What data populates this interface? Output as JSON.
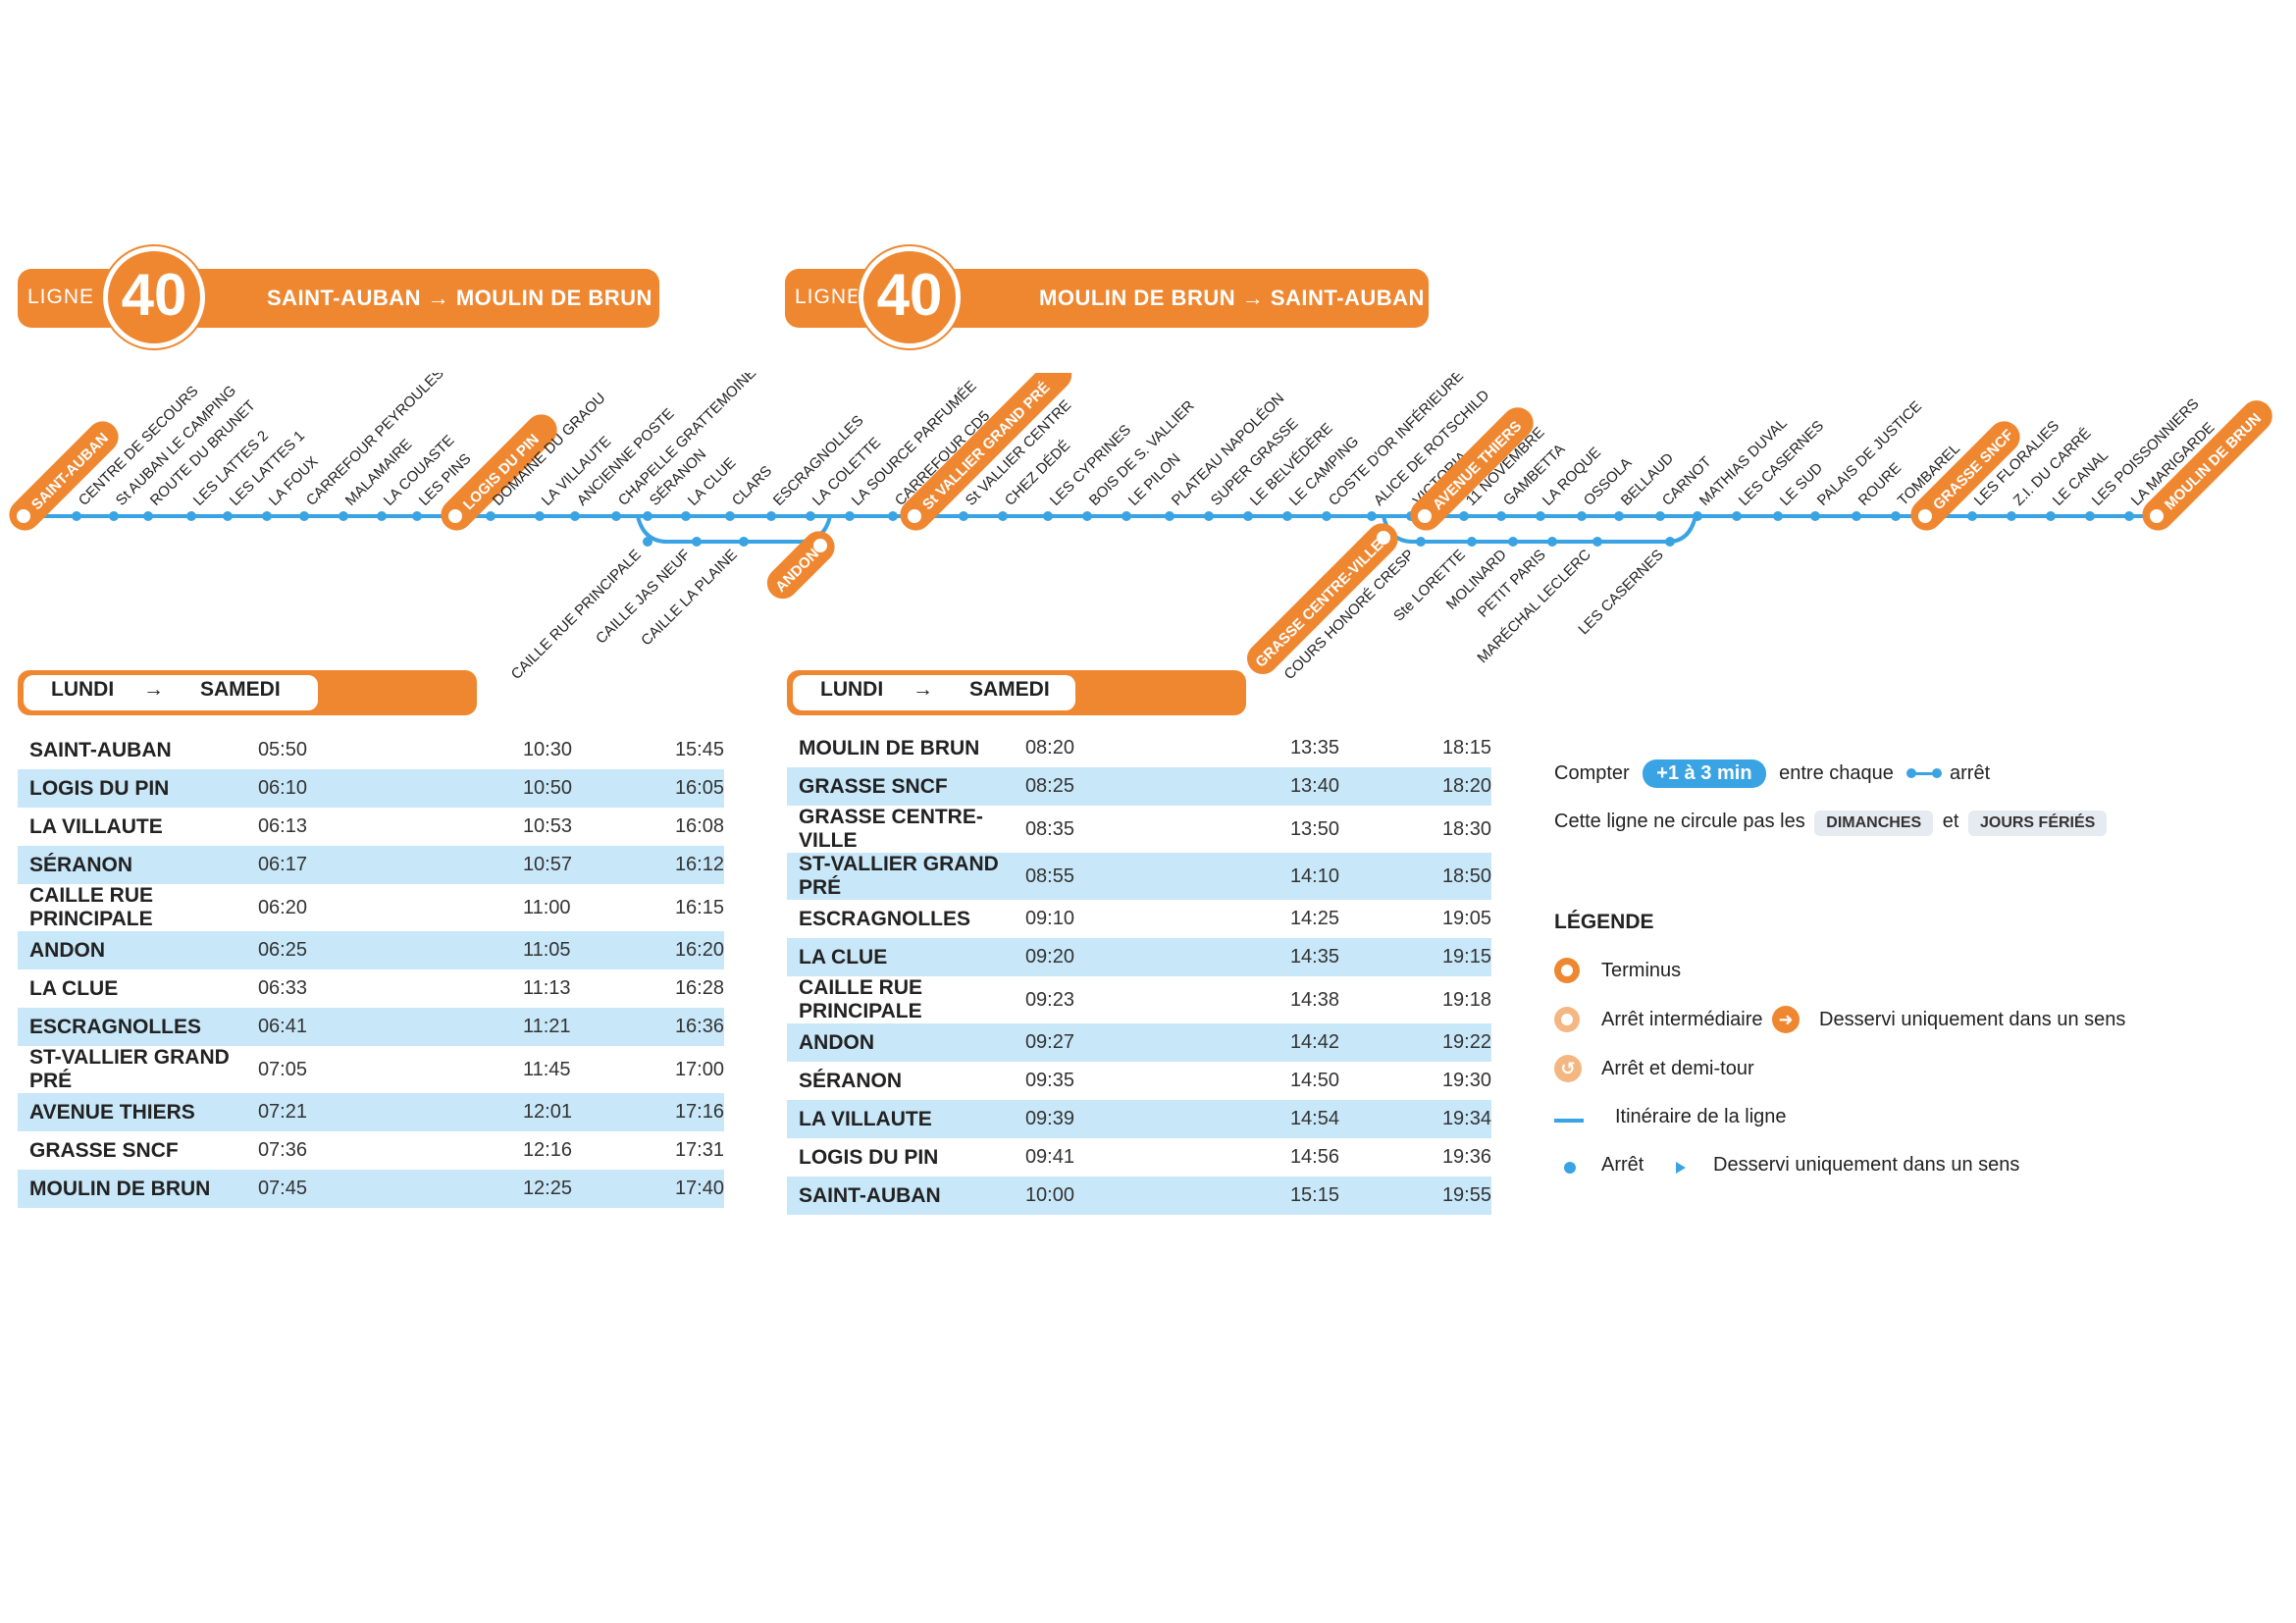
{
  "colors": {
    "orange": "#ef8731",
    "blue": "#3aa3e3",
    "light_blue": "#c8e7f8"
  },
  "header_left": {
    "ligne": "LIGNE",
    "number": "40",
    "from": "SAINT-AUBAN",
    "arrow": "→",
    "to": "MOULIN DE BRUN"
  },
  "header_right": {
    "ligne": "LIGNE",
    "number": "40",
    "from": "MOULIN DE BRUN",
    "arrow": "→",
    "to": "SAINT-AUBAN"
  },
  "map": {
    "main_stops": [
      "SAINT-AUBAN",
      "CENTRE DE SECOURS",
      "St AUBAN LE CAMPING",
      "ROUTE DU BRUNET",
      "LES LATTES 2",
      "LES LATTES 1",
      "LA FOUX",
      "CARREFOUR PEYROULES",
      "MALAMAIRE",
      "LA COUASTE",
      "LES PINS",
      "LOGIS DU PIN",
      "DOMAINE DU GRAOU",
      "LA VILLAUTE",
      "ANCIENNE POSTE",
      "CHAPELLE GRATTEMOINE",
      "SÉRANON",
      "LA CLUE",
      "CLARS",
      "ESCRAGNOLLES",
      "LA COLETTE",
      "LA SOURCE PARFUMÉE",
      "CARREFOUR CD5",
      "St VALLIER GRAND PRÉ",
      "St VALLIER CENTRE",
      "CHEZ DÉDÉ",
      "LES CYPRINES",
      "BOIS DE S. VALLIER",
      "LE PILON",
      "PLATEAU NAPOLÉON",
      "SUPER GRASSE",
      "LE BELVÉDÈRE",
      "LE CAMPING",
      "COSTE D'OR INFÉRIEURE",
      "ALICE DE ROTSCHILD",
      "VICTORIA",
      "AVENUE THIERS",
      "11 NOVEMBRE",
      "GAMBETTA",
      "LA ROQUE",
      "OSSOLA",
      "BELLAUD",
      "CARNOT",
      "MATHIAS DUVAL",
      "LES CASERNES",
      "LE SUD",
      "PALAIS DE JUSTICE",
      "ROURE",
      "TOMBAREL",
      "GRASSE SNCF",
      "LES FLORALIES",
      "Z.I. DU CARRÉ",
      "LE CANAL",
      "LES POISSONNIERS",
      "LA MARIGARDE",
      "MOULIN DE BRUN"
    ],
    "branch1_stops": [
      "CAILLE RUE PRINCIPALE",
      "CAILLE JAS NEUF",
      "CAILLE LA PLAINE",
      "ANDON"
    ],
    "branch2_stops": [
      "GRASSE CENTRE-VILLE",
      "COURS HONORÉ CRESP",
      "Ste LORETTE",
      "MOLINARD",
      "PETIT PARIS",
      "MARÉCHAL LECLERC",
      "LES CASERNES"
    ]
  },
  "tab_left": {
    "from": "LUNDI",
    "arrow": "→",
    "to": "SAMEDI"
  },
  "tab_right": {
    "from": "LUNDI",
    "arrow": "→",
    "to": "SAMEDI"
  },
  "table_left": [
    {
      "stop": "SAINT-AUBAN",
      "t1": "05:50",
      "t2": "10:30",
      "t3": "15:45"
    },
    {
      "stop": "LOGIS DU PIN",
      "t1": "06:10",
      "t2": "10:50",
      "t3": "16:05"
    },
    {
      "stop": "LA VILLAUTE",
      "t1": "06:13",
      "t2": "10:53",
      "t3": "16:08"
    },
    {
      "stop": "SÉRANON",
      "t1": "06:17",
      "t2": "10:57",
      "t3": "16:12"
    },
    {
      "stop": "CAILLE RUE PRINCIPALE",
      "t1": "06:20",
      "t2": "11:00",
      "t3": "16:15"
    },
    {
      "stop": "ANDON",
      "t1": "06:25",
      "t2": "11:05",
      "t3": "16:20"
    },
    {
      "stop": "LA CLUE",
      "t1": "06:33",
      "t2": "11:13",
      "t3": "16:28"
    },
    {
      "stop": "ESCRAGNOLLES",
      "t1": "06:41",
      "t2": "11:21",
      "t3": "16:36"
    },
    {
      "stop": "ST-VALLIER GRAND PRÉ",
      "t1": "07:05",
      "t2": "11:45",
      "t3": "17:00"
    },
    {
      "stop": "AVENUE THIERS",
      "t1": "07:21",
      "t2": "12:01",
      "t3": "17:16"
    },
    {
      "stop": "GRASSE SNCF",
      "t1": "07:36",
      "t2": "12:16",
      "t3": "17:31"
    },
    {
      "stop": "MOULIN DE BRUN",
      "t1": "07:45",
      "t2": "12:25",
      "t3": "17:40"
    }
  ],
  "table_right": [
    {
      "stop": "MOULIN DE BRUN",
      "t1": "08:20",
      "t2": "13:35",
      "t3": "18:15"
    },
    {
      "stop": "GRASSE SNCF",
      "t1": "08:25",
      "t2": "13:40",
      "t3": "18:20"
    },
    {
      "stop": "GRASSE CENTRE-VILLE",
      "t1": "08:35",
      "t2": "13:50",
      "t3": "18:30"
    },
    {
      "stop": "ST-VALLIER GRAND PRÉ",
      "t1": "08:55",
      "t2": "14:10",
      "t3": "18:50"
    },
    {
      "stop": "ESCRAGNOLLES",
      "t1": "09:10",
      "t2": "14:25",
      "t3": "19:05"
    },
    {
      "stop": "LA CLUE",
      "t1": "09:20",
      "t2": "14:35",
      "t3": "19:15"
    },
    {
      "stop": "CAILLE RUE PRINCIPALE",
      "t1": "09:23",
      "t2": "14:38",
      "t3": "19:18"
    },
    {
      "stop": "ANDON",
      "t1": "09:27",
      "t2": "14:42",
      "t3": "19:22"
    },
    {
      "stop": "SÉRANON",
      "t1": "09:35",
      "t2": "14:50",
      "t3": "19:30"
    },
    {
      "stop": "LA VILLAUTE",
      "t1": "09:39",
      "t2": "14:54",
      "t3": "19:34"
    },
    {
      "stop": "LOGIS DU PIN",
      "t1": "09:41",
      "t2": "14:56",
      "t3": "19:36"
    },
    {
      "stop": "SAINT-AUBAN",
      "t1": "10:00",
      "t2": "15:15",
      "t3": "19:55"
    }
  ],
  "notes": {
    "compter": "Compter",
    "pill": "+1 à 3 min",
    "entre": "entre chaque",
    "arret": "arrêt",
    "circule": "Cette ligne ne circule pas les",
    "dimanches": "DIMANCHES",
    "et": "et",
    "feries": "JOURS FÉRIÉS"
  },
  "legend": {
    "title": "LÉGENDE",
    "terminus": "Terminus",
    "intermediaire": "Arrêt intermédiaire",
    "sens_orange": "Desservi uniquement dans un sens",
    "demi_tour": "Arrêt et demi-tour",
    "itineraire": "Itinéraire de la ligne",
    "arret": "Arrêt",
    "sens_blue": "Desservi uniquement dans un sens"
  }
}
